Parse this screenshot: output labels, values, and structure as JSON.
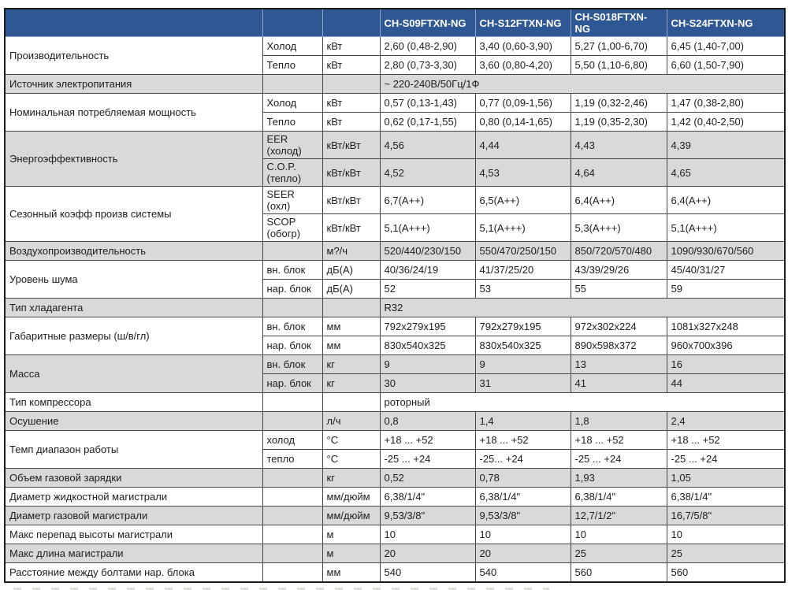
{
  "colors": {
    "header_bg": "#2e5794",
    "header_text": "#ffffff",
    "row_alt_bg": "#d9d9d9",
    "border": "#454545"
  },
  "table": {
    "rows": [
      {
        "s": "h",
        "cells": [
          {
            "t": ""
          },
          {
            "t": ""
          },
          {
            "t": ""
          },
          {
            "t": "CH-S09FTXN-NG"
          },
          {
            "t": "CH-S12FTXN-NG"
          },
          {
            "t": "CH-S018FTXN-NG"
          },
          {
            "t": "CH-S24FTXN-NG"
          }
        ]
      },
      {
        "s": "w",
        "cells": [
          {
            "t": "Производительность",
            "rs": 2
          },
          {
            "t": "Холод"
          },
          {
            "t": "кВт"
          },
          {
            "t": "2,60 (0,48-2,90)"
          },
          {
            "t": "3,40 (0,60-3,90)"
          },
          {
            "t": "5,27 (1,00-6,70)"
          },
          {
            "t": "6,45 (1,40-7,00)"
          }
        ]
      },
      {
        "s": "w",
        "cells": [
          {
            "t": "Тепло"
          },
          {
            "t": "кВт"
          },
          {
            "t": "2,80 (0,73-3,30)"
          },
          {
            "t": "3,60 (0,80-4,20)"
          },
          {
            "t": "5,50 (1,10-6,80)"
          },
          {
            "t": "6,60 (1,50-7,90)"
          }
        ]
      },
      {
        "s": "g",
        "cells": [
          {
            "t": "Источник электропитания"
          },
          {
            "t": ""
          },
          {
            "t": ""
          },
          {
            "t": "~ 220-240В/50Гц/1Ф",
            "cs": 4
          }
        ]
      },
      {
        "s": "w",
        "cells": [
          {
            "t": "Номинальная потребляемая мощность",
            "rs": 2
          },
          {
            "t": "Холод"
          },
          {
            "t": "кВт"
          },
          {
            "t": "0,57 (0,13-1,43)"
          },
          {
            "t": "0,77 (0,09-1,56)"
          },
          {
            "t": "1,19 (0,32-2,46)"
          },
          {
            "t": "1,47 (0,38-2,80)"
          }
        ]
      },
      {
        "s": "w",
        "cells": [
          {
            "t": "Тепло"
          },
          {
            "t": "кВт"
          },
          {
            "t": "0,62 (0,17-1,55)"
          },
          {
            "t": "0,80 (0,14-1,65)"
          },
          {
            "t": "1,19 (0,35-2,30)"
          },
          {
            "t": "1,42 (0,40-2,50)"
          }
        ]
      },
      {
        "s": "g",
        "cells": [
          {
            "t": "Энергоэффективность",
            "rs": 2
          },
          {
            "t": "EER (холод)"
          },
          {
            "t": "кВт/кВт"
          },
          {
            "t": "4,56"
          },
          {
            "t": "4,44"
          },
          {
            "t": "4,43"
          },
          {
            "t": "4,39"
          }
        ]
      },
      {
        "s": "g",
        "cells": [
          {
            "t": "C.O.P.\n(тепло)"
          },
          {
            "t": "кВт/кВт"
          },
          {
            "t": "4,52"
          },
          {
            "t": "4,53"
          },
          {
            "t": "4,64"
          },
          {
            "t": "4,65"
          }
        ]
      },
      {
        "s": "w",
        "cells": [
          {
            "t": "Сезонный коэфф произв системы",
            "rs": 2
          },
          {
            "t": "SEER (охл)"
          },
          {
            "t": "кВт/кВт"
          },
          {
            "t": "6,7(A++)"
          },
          {
            "t": "6,5(A++)"
          },
          {
            "t": "6,4(A++)"
          },
          {
            "t": "6,4(A++)"
          }
        ]
      },
      {
        "s": "w",
        "cells": [
          {
            "t": "SCOP\n(обогр)"
          },
          {
            "t": "кВт/кВт"
          },
          {
            "t": "5,1(A+++)"
          },
          {
            "t": "5,1(A+++)"
          },
          {
            "t": "5,3(A+++)"
          },
          {
            "t": "5,1(A+++)"
          }
        ]
      },
      {
        "s": "g",
        "cells": [
          {
            "t": "Воздухопроизводительность"
          },
          {
            "t": ""
          },
          {
            "t": "м?/ч"
          },
          {
            "t": "520/440/230/150"
          },
          {
            "t": "550/470/250/150"
          },
          {
            "t": "850/720/570/480"
          },
          {
            "t": "1090/930/670/560"
          }
        ]
      },
      {
        "s": "w",
        "cells": [
          {
            "t": "Уровень шума",
            "rs": 2
          },
          {
            "t": "вн. блок"
          },
          {
            "t": "дБ(А)"
          },
          {
            "t": "40/36/24/19"
          },
          {
            "t": "41/37/25/20"
          },
          {
            "t": "43/39/29/26"
          },
          {
            "t": "45/40/31/27"
          }
        ]
      },
      {
        "s": "w",
        "cells": [
          {
            "t": "нар. блок"
          },
          {
            "t": "дБ(А)"
          },
          {
            "t": "52"
          },
          {
            "t": "53"
          },
          {
            "t": "55"
          },
          {
            "t": "59"
          }
        ]
      },
      {
        "s": "g",
        "cells": [
          {
            "t": "Тип хладагента"
          },
          {
            "t": ""
          },
          {
            "t": ""
          },
          {
            "t": "R32",
            "cs": 4
          }
        ]
      },
      {
        "s": "w",
        "cells": [
          {
            "t": "Габаритные размеры (ш/в/гл)",
            "rs": 2
          },
          {
            "t": "вн. блок"
          },
          {
            "t": "мм"
          },
          {
            "t": "792x279x195"
          },
          {
            "t": "792x279x195"
          },
          {
            "t": "972x302x224"
          },
          {
            "t": "1081x327x248"
          }
        ]
      },
      {
        "s": "w",
        "cells": [
          {
            "t": "нар. блок"
          },
          {
            "t": "мм"
          },
          {
            "t": "830x540x325"
          },
          {
            "t": "830x540x325"
          },
          {
            "t": "890x598x372"
          },
          {
            "t": "960x700x396"
          }
        ]
      },
      {
        "s": "g",
        "cells": [
          {
            "t": "Масса",
            "rs": 2
          },
          {
            "t": "вн. блок"
          },
          {
            "t": "кг"
          },
          {
            "t": "9"
          },
          {
            "t": "9"
          },
          {
            "t": "13"
          },
          {
            "t": "16"
          }
        ]
      },
      {
        "s": "g",
        "cells": [
          {
            "t": "нар. блок"
          },
          {
            "t": "кг"
          },
          {
            "t": "30"
          },
          {
            "t": "31"
          },
          {
            "t": "41"
          },
          {
            "t": "44"
          }
        ]
      },
      {
        "s": "w",
        "cells": [
          {
            "t": "Тип компрессора"
          },
          {
            "t": ""
          },
          {
            "t": ""
          },
          {
            "t": "роторный",
            "cs": 4
          }
        ]
      },
      {
        "s": "g",
        "cells": [
          {
            "t": "Осушение"
          },
          {
            "t": ""
          },
          {
            "t": "л/ч"
          },
          {
            "t": "0,8"
          },
          {
            "t": "1,4"
          },
          {
            "t": "1,8"
          },
          {
            "t": "2,4"
          }
        ]
      },
      {
        "s": "w",
        "cells": [
          {
            "t": "Темп диапазон работы",
            "rs": 2
          },
          {
            "t": "холод"
          },
          {
            "t": "°С"
          },
          {
            "t": "+18 ... +52"
          },
          {
            "t": "+18 ... +52"
          },
          {
            "t": "+18 ... +52"
          },
          {
            "t": "+18 ... +52"
          }
        ]
      },
      {
        "s": "w",
        "cells": [
          {
            "t": "тепло"
          },
          {
            "t": "°С"
          },
          {
            "t": "-25 ... +24"
          },
          {
            "t": "-25... +24"
          },
          {
            "t": "-25 ... +24"
          },
          {
            "t": "-25 ... +24"
          }
        ]
      },
      {
        "s": "g",
        "cells": [
          {
            "t": "Объем газовой зарядки"
          },
          {
            "t": ""
          },
          {
            "t": "кг"
          },
          {
            "t": "0,52"
          },
          {
            "t": "0,78"
          },
          {
            "t": "1,93"
          },
          {
            "t": "1,05"
          }
        ]
      },
      {
        "s": "w",
        "cells": [
          {
            "t": "Диаметр жидкостной магистрали"
          },
          {
            "t": ""
          },
          {
            "t": "мм/дюйм"
          },
          {
            "t": "6,38/1/4\""
          },
          {
            "t": "6,38/1/4\""
          },
          {
            "t": "6,38/1/4\""
          },
          {
            "t": "6,38/1/4\""
          }
        ]
      },
      {
        "s": "g",
        "cells": [
          {
            "t": "Диаметр газовой магистрали"
          },
          {
            "t": ""
          },
          {
            "t": "мм/дюйм"
          },
          {
            "t": "9,53/3/8\""
          },
          {
            "t": "9,53/3/8\""
          },
          {
            "t": "12,7/1/2\""
          },
          {
            "t": "16,7/5/8\""
          }
        ]
      },
      {
        "s": "w",
        "cells": [
          {
            "t": "Макс перепад высоты магистрали"
          },
          {
            "t": ""
          },
          {
            "t": "м"
          },
          {
            "t": "10"
          },
          {
            "t": "10"
          },
          {
            "t": "10"
          },
          {
            "t": "10"
          }
        ]
      },
      {
        "s": "g",
        "cells": [
          {
            "t": "Макс длина магистрали"
          },
          {
            "t": ""
          },
          {
            "t": "м"
          },
          {
            "t": "20"
          },
          {
            "t": "20"
          },
          {
            "t": "25"
          },
          {
            "t": "25"
          }
        ]
      },
      {
        "s": "w",
        "cells": [
          {
            "t": "Расстояние между болтами нар. блока"
          },
          {
            "t": ""
          },
          {
            "t": "мм"
          },
          {
            "t": "540"
          },
          {
            "t": "540"
          },
          {
            "t": "560"
          },
          {
            "t": "560"
          }
        ]
      }
    ]
  }
}
